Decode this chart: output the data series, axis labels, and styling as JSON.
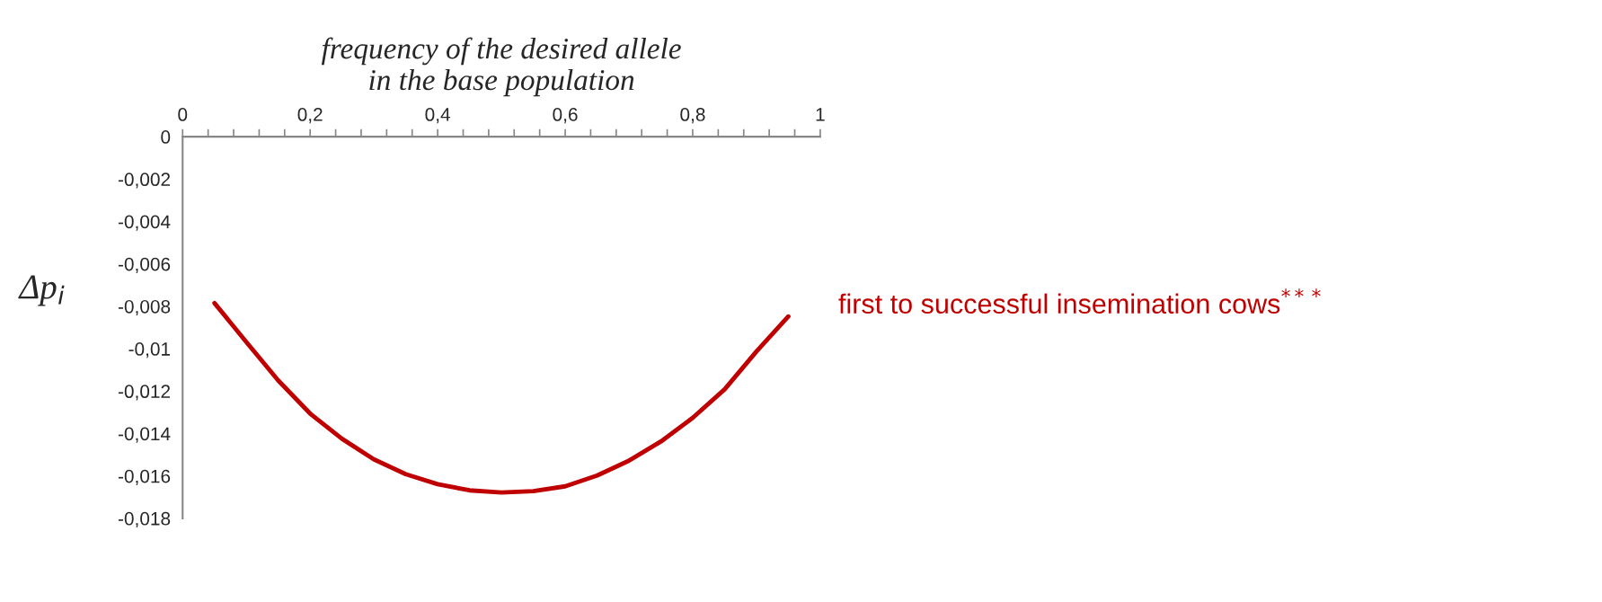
{
  "chart_data": {
    "type": "line",
    "xlabel": "frequency of the desired allele\nin the base population",
    "ylabel": "Δp$_{i}$",
    "x": [
      0.05,
      0.1,
      0.15,
      0.2,
      0.25,
      0.3,
      0.35,
      0.4,
      0.45,
      0.5,
      0.55,
      0.6,
      0.65,
      0.7,
      0.75,
      0.8,
      0.85,
      0.9,
      0.95
    ],
    "series": [
      {
        "name": "first to successful insemination cows$^{***}$",
        "color": "#c00000",
        "values": [
          -0.00785,
          -0.00969,
          -0.0115,
          -0.01306,
          -0.01425,
          -0.01522,
          -0.01592,
          -0.01639,
          -0.01668,
          -0.01678,
          -0.01672,
          -0.01649,
          -0.01598,
          -0.01528,
          -0.01438,
          -0.01326,
          -0.01192,
          -0.01013,
          -0.00848
        ]
      }
    ],
    "xlim": [
      0,
      1
    ],
    "xticks": [
      0,
      {
        "value": 0.04,
        "label": null
      },
      {
        "value": 0.08,
        "label": null
      },
      {
        "value": 0.12,
        "label": null
      },
      {
        "value": 0.16,
        "label": null
      },
      {
        "value": 0.2,
        "label": "0,2"
      },
      {
        "value": 0.24,
        "label": null
      },
      {
        "value": 0.28,
        "label": null
      },
      {
        "value": 0.32,
        "label": null
      },
      {
        "value": 0.36,
        "label": null
      },
      {
        "value": 0.4,
        "label": "0,4"
      },
      {
        "value": 0.44,
        "label": null
      },
      {
        "value": 0.48,
        "label": null
      },
      {
        "value": 0.52,
        "label": null
      },
      {
        "value": 0.56,
        "label": null
      },
      {
        "value": 0.6,
        "label": "0,6"
      },
      {
        "value": 0.64,
        "label": null
      },
      {
        "value": 0.68,
        "label": null
      },
      {
        "value": 0.72,
        "label": null
      },
      {
        "value": 0.76,
        "label": null
      },
      {
        "value": 0.8,
        "label": "0,8"
      },
      {
        "value": 0.84,
        "label": null
      },
      {
        "value": 0.88,
        "label": null
      },
      {
        "value": 0.92,
        "label": null
      },
      {
        "value": 0.96,
        "label": null
      },
      1
    ],
    "ylim": [
      -0.018,
      0
    ],
    "yticks": [
      0,
      {
        "value": -0.002,
        "label": "-0,002"
      },
      {
        "value": -0.004,
        "label": "-0,004"
      },
      {
        "value": -0.006,
        "label": "-0,006"
      },
      {
        "value": -0.008,
        "label": "-0,008"
      },
      {
        "value": -0.01,
        "label": "-0,01"
      },
      {
        "value": -0.012,
        "label": "-0,012"
      },
      {
        "value": -0.014,
        "label": "-0,014"
      },
      {
        "value": -0.016,
        "label": "-0,016"
      },
      {
        "value": -0.018,
        "label": "-0,018"
      }
    ],
    "grid": false,
    "legend": false,
    "marker": "none",
    "line_style": "solid"
  }
}
